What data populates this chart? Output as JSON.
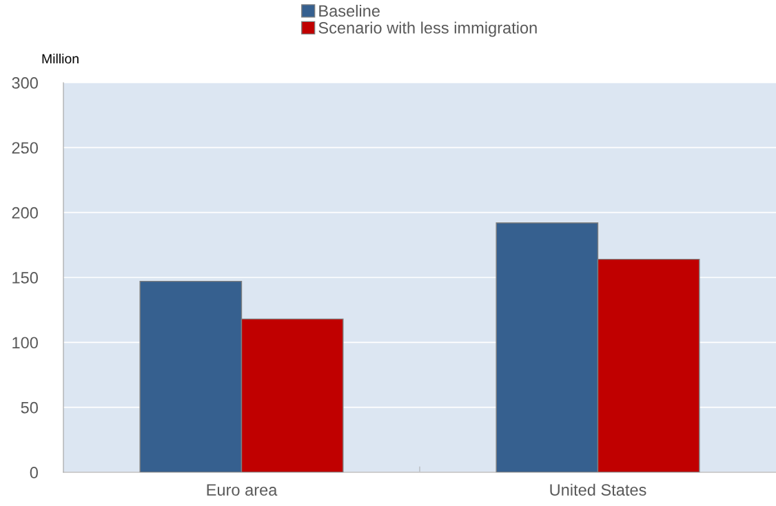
{
  "chart_data": {
    "type": "bar",
    "ylabel": "Million",
    "categories": [
      "Euro area",
      "United States"
    ],
    "series": [
      {
        "name": "Baseline",
        "color": "#36608f",
        "values": [
          147,
          192
        ]
      },
      {
        "name": "Scenario with less immigration",
        "color": "#c00000",
        "values": [
          118,
          164
        ]
      }
    ],
    "ylim": [
      0,
      300
    ],
    "yticks": [
      0,
      50,
      100,
      150,
      200,
      250,
      300
    ],
    "grid": "y",
    "legend": "top"
  }
}
